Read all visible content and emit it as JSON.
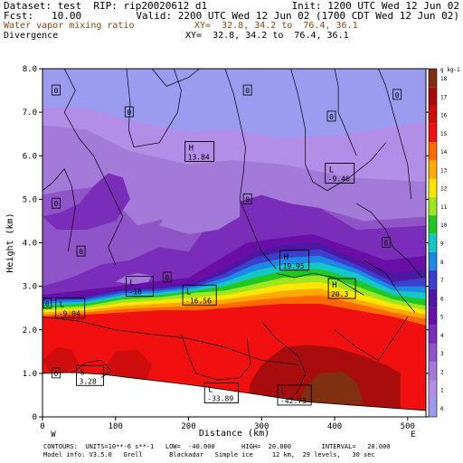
{
  "header": {
    "line1_left": "Dataset: test  RIP: rip20020612 d1",
    "line1_right": "Init: 1200 UTC Wed 12 Jun 02",
    "line2_left": "Fcst:   10.00",
    "line2_right": "Valid: 2200 UTC Wed 12 Jun 02 (1700 CDT Wed 12 Jun 02)",
    "line3_left": "Water vapor mixing ratio",
    "line3_right": "XY=  32.8, 34.2 to  76.4, 36.1",
    "line4_left": "Divergence",
    "line4_right": "XY=  32.8, 34.2 to  76.4, 36.1",
    "accent_color": "#8b4513"
  },
  "footer": {
    "line1": "CONTOURS:  UNITS=10**-6 s**-1   LOW=  -40.000       HIGH=  20.000        INTERVAL=   20.000",
    "line2": "Model info: V3.5.0   Grell       Blackadar   Simple ice     12 km,  29 levels,   30 sec"
  },
  "chart_data": {
    "type": "heatmap",
    "title": "Water vapor mixing ratio",
    "xlabel": "Distance (km)",
    "ylabel": "Height (km)",
    "xlim": [
      0,
      525
    ],
    "ylim": [
      0,
      8
    ],
    "x_ticks": [
      0,
      100,
      200,
      300,
      400,
      500
    ],
    "y_ticks": [
      0,
      1,
      2,
      3,
      4,
      5,
      6,
      7,
      8
    ],
    "y_tick_labels": [
      "0",
      "1.0",
      "2.0",
      "3.0",
      "4.0",
      "5.0",
      "6.0",
      "7.0",
      "8.0"
    ],
    "x_end_labels": {
      "left": "W",
      "right": "E"
    },
    "colorbar": {
      "unit": "g kg-1",
      "levels": [
        0,
        1,
        2,
        3,
        4,
        5,
        6,
        7,
        8,
        9,
        10,
        11,
        12,
        13,
        14,
        15,
        16,
        17,
        18
      ],
      "colors": [
        "#9b9bf0",
        "#b28ee6",
        "#a47ad8",
        "#8f55c8",
        "#7a2db8",
        "#6a0ea8",
        "#4b17a3",
        "#3b3fcc",
        "#1e88e6",
        "#15c8c8",
        "#22c822",
        "#a0e61e",
        "#ffe600",
        "#ffaa00",
        "#ff6a00",
        "#f01010",
        "#cf0d0d",
        "#a80c0c",
        "#7f3010"
      ]
    },
    "annotations": [
      {
        "kind": "H",
        "value": "13.84",
        "x": 215,
        "y": 6.1
      },
      {
        "kind": "L",
        "value": "-9.46",
        "x": 407,
        "y": 5.6
      },
      {
        "kind": "H",
        "value": "19.95",
        "x": 345,
        "y": 3.6
      },
      {
        "kind": "H",
        "value": "20.3",
        "x": 410,
        "y": 2.95
      },
      {
        "kind": "L",
        "value": "-18",
        "x": 133,
        "y": 3.0
      },
      {
        "kind": "L",
        "value": "-16.56",
        "x": 215,
        "y": 2.8
      },
      {
        "kind": "L",
        "value": "-9.04",
        "x": 38,
        "y": 2.5
      },
      {
        "kind": "L",
        "value": "-33.89",
        "x": 245,
        "y": 0.55
      },
      {
        "kind": "L",
        "value": "-42.73",
        "x": 345,
        "y": 0.5
      },
      {
        "kind": "S",
        "value": "3.28",
        "x": 65,
        "y": 0.95
      }
    ],
    "zero_labels": [
      {
        "x": 18,
        "y": 7.5
      },
      {
        "x": 280,
        "y": 7.5
      },
      {
        "x": 485,
        "y": 7.4
      },
      {
        "x": 118,
        "y": 7.0
      },
      {
        "x": 395,
        "y": 6.9
      },
      {
        "x": 18,
        "y": 4.9
      },
      {
        "x": 280,
        "y": 5.0
      },
      {
        "x": 52,
        "y": 3.8
      },
      {
        "x": 170,
        "y": 3.2
      },
      {
        "x": 470,
        "y": 4.0
      },
      {
        "x": 6,
        "y": 2.6
      },
      {
        "x": 18,
        "y": 1.0
      }
    ]
  }
}
